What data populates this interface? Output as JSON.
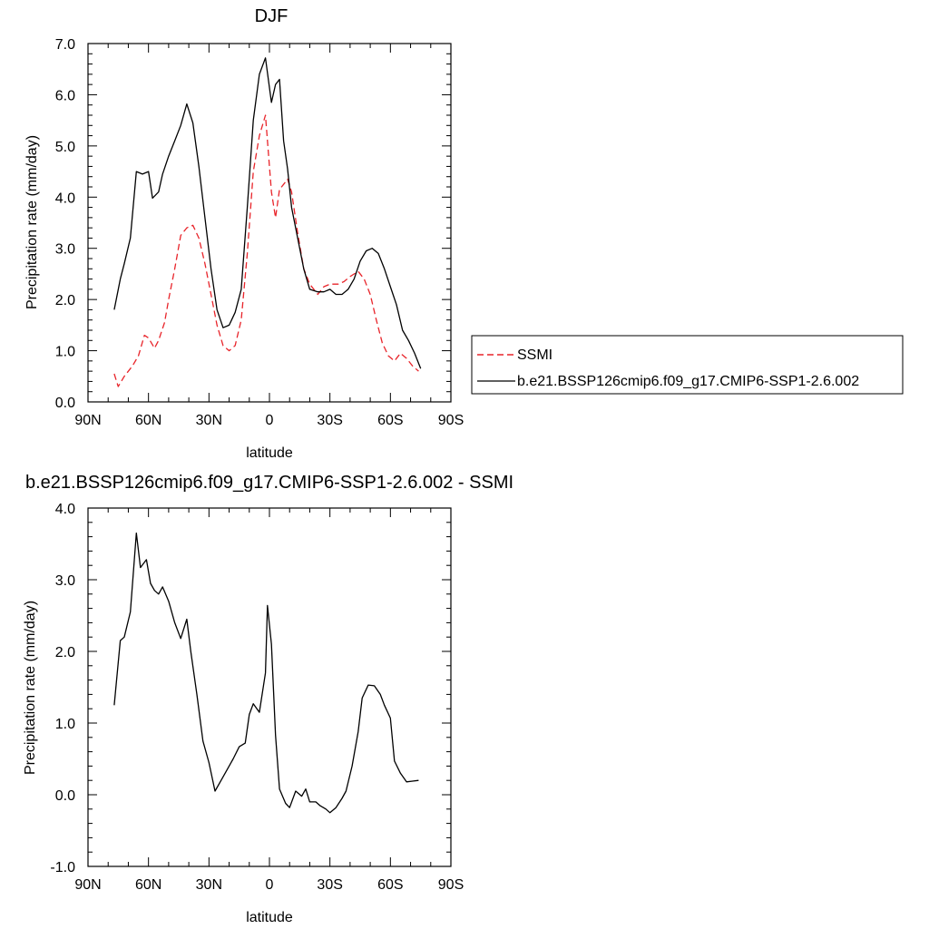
{
  "chart_data": [
    {
      "type": "line",
      "title": "DJF",
      "xlabel": "latitude",
      "ylabel": "Precipitation rate (mm/day)",
      "xlim": [
        90,
        -90
      ],
      "ylim": [
        0,
        7
      ],
      "x_ticks": [
        90,
        60,
        30,
        0,
        -30,
        -60,
        -90
      ],
      "x_tick_labels": [
        "90N",
        "60N",
        "30N",
        "0",
        "30S",
        "60S",
        "90S"
      ],
      "y_ticks": [
        0,
        1,
        2,
        3,
        4,
        5,
        6,
        7
      ],
      "y_tick_labels": [
        "0.0",
        "1.0",
        "2.0",
        "3.0",
        "4.0",
        "5.0",
        "6.0",
        "7.0"
      ],
      "legend_position": "outside-right",
      "series": [
        {
          "name": "SSMI",
          "color": "#e8242a",
          "dash": "dashed",
          "x": [
            77,
            75,
            72,
            68,
            65,
            62,
            60,
            57,
            55,
            52,
            50,
            47,
            44,
            41,
            38,
            35,
            32,
            29,
            26,
            23,
            20,
            17,
            14,
            11,
            8,
            5,
            2,
            -1,
            -3,
            -5,
            -7,
            -9,
            -11,
            -14,
            -17,
            -20,
            -24,
            -27,
            -30,
            -34,
            -37,
            -40,
            -44,
            -47,
            -50,
            -53,
            -56,
            -59,
            -62,
            -65,
            -68,
            -71,
            -74
          ],
          "y": [
            0.55,
            0.3,
            0.5,
            0.7,
            0.9,
            1.3,
            1.25,
            1.05,
            1.2,
            1.55,
            2.0,
            2.6,
            3.25,
            3.4,
            3.45,
            3.2,
            2.7,
            2.1,
            1.5,
            1.1,
            1.0,
            1.1,
            1.6,
            2.9,
            4.5,
            5.2,
            5.6,
            4.1,
            3.6,
            4.15,
            4.25,
            4.35,
            4.1,
            3.3,
            2.6,
            2.3,
            2.1,
            2.25,
            2.3,
            2.3,
            2.35,
            2.45,
            2.55,
            2.4,
            2.1,
            1.6,
            1.15,
            0.9,
            0.8,
            0.95,
            0.85,
            0.7,
            0.6
          ]
        },
        {
          "name": "b.e21.BSSP126cmip6.f09_g17.CMIP6-SSP1-2.6.002",
          "color": "#000000",
          "dash": "solid",
          "x": [
            77,
            74,
            72,
            69,
            66,
            63,
            60,
            58,
            55,
            53,
            50,
            47,
            44,
            41,
            38,
            35,
            32,
            29,
            26,
            23,
            20,
            17,
            14,
            11,
            8,
            5,
            2,
            -1,
            -3,
            -5,
            -7,
            -9,
            -11,
            -14,
            -17,
            -20,
            -24,
            -27,
            -30,
            -33,
            -36,
            -39,
            -42,
            -45,
            -48,
            -51,
            -54,
            -57,
            -60,
            -63,
            -66,
            -69,
            -72,
            -75
          ],
          "y": [
            1.8,
            2.4,
            2.7,
            3.2,
            4.5,
            4.45,
            4.5,
            3.98,
            4.1,
            4.45,
            4.8,
            5.1,
            5.4,
            5.82,
            5.45,
            4.6,
            3.6,
            2.6,
            1.8,
            1.45,
            1.5,
            1.75,
            2.2,
            3.8,
            5.5,
            6.4,
            6.72,
            5.85,
            6.2,
            6.3,
            5.1,
            4.55,
            3.8,
            3.2,
            2.6,
            2.2,
            2.15,
            2.15,
            2.2,
            2.1,
            2.1,
            2.2,
            2.4,
            2.75,
            2.95,
            3.0,
            2.9,
            2.6,
            2.25,
            1.9,
            1.4,
            1.2,
            0.95,
            0.65
          ]
        }
      ]
    },
    {
      "type": "line",
      "title": "b.e21.BSSP126cmip6.f09_g17.CMIP6-SSP1-2.6.002 - SSMI",
      "xlabel": "latitude",
      "ylabel": "Precipitation rate (mm/day)",
      "xlim": [
        90,
        -90
      ],
      "ylim": [
        -1,
        4
      ],
      "x_ticks": [
        90,
        60,
        30,
        0,
        -30,
        -60,
        -90
      ],
      "x_tick_labels": [
        "90N",
        "60N",
        "30N",
        "0",
        "30S",
        "60S",
        "90S"
      ],
      "y_ticks": [
        -1,
        0,
        1,
        2,
        3,
        4
      ],
      "y_tick_labels": [
        "-1.0",
        "0.0",
        "1.0",
        "2.0",
        "3.0",
        "4.0"
      ],
      "series": [
        {
          "color": "#000000",
          "dash": "solid",
          "x": [
            77,
            74,
            72,
            69,
            66,
            64,
            61,
            59,
            57,
            55,
            53,
            50,
            47,
            44,
            41,
            39,
            36,
            33,
            30,
            27,
            24,
            21,
            18,
            15,
            12,
            10,
            8,
            5,
            2,
            1,
            -1,
            -3,
            -5,
            -8,
            -10,
            -13,
            -16,
            -18,
            -20,
            -23,
            -25,
            -28,
            -30,
            -33,
            -36,
            -38,
            -41,
            -44,
            -46,
            -49,
            -52,
            -55,
            -57,
            -60,
            -62,
            -65,
            -68,
            -71,
            -74
          ],
          "y": [
            1.25,
            2.15,
            2.2,
            2.55,
            3.65,
            3.17,
            3.28,
            2.95,
            2.85,
            2.8,
            2.9,
            2.7,
            2.4,
            2.18,
            2.45,
            2.0,
            1.4,
            0.75,
            0.45,
            0.05,
            0.2,
            0.35,
            0.5,
            0.67,
            0.72,
            1.12,
            1.27,
            1.15,
            1.7,
            2.64,
            2.1,
            0.83,
            0.08,
            -0.12,
            -0.18,
            0.05,
            -0.02,
            0.08,
            -0.1,
            -0.1,
            -0.15,
            -0.2,
            -0.25,
            -0.18,
            -0.05,
            0.05,
            0.4,
            0.88,
            1.35,
            1.53,
            1.52,
            1.4,
            1.25,
            1.07,
            0.47,
            0.3,
            0.18,
            0.19,
            0.2
          ]
        }
      ]
    }
  ]
}
